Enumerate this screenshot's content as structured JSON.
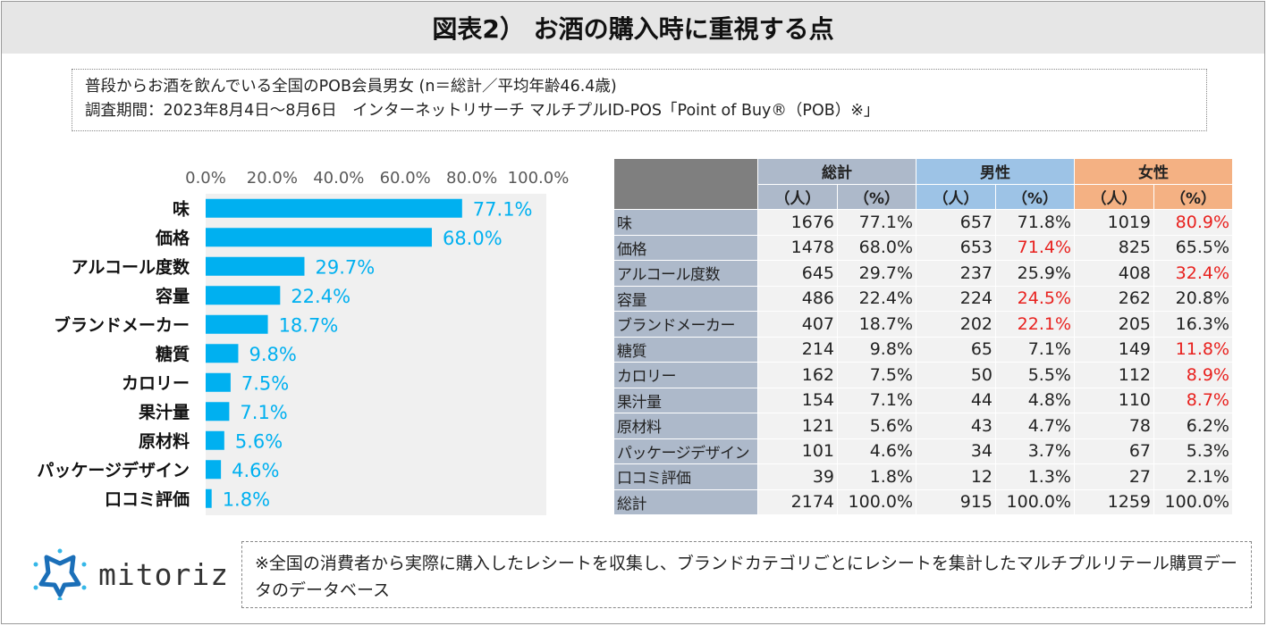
{
  "title": "図表2） お酒の購入時に重視する点",
  "survey": {
    "line1": "普段からお酒を飲んでいる全国のPOB会員男女 (n＝総計／平均年齢46.4歳)",
    "line2": "調査期間：2023年8月4日〜8月6日　インターネットリサーチ マルチプルID-POS「Point of Buy®（POB）※」"
  },
  "colors": {
    "bar": "#00b0f0",
    "highlight": "#e8211e",
    "header_all": "#adb9ca",
    "header_male": "#9dc3e6",
    "header_female": "#f4b183"
  },
  "chart_data": {
    "type": "bar",
    "orientation": "horizontal",
    "categories": [
      "味",
      "価格",
      "アルコール度数",
      "容量",
      "ブランドメーカー",
      "糖質",
      "カロリー",
      "果汁量",
      "原材料",
      "パッケージデザイン",
      "口コミ評価"
    ],
    "values": [
      77.1,
      68.0,
      29.7,
      22.4,
      18.7,
      9.8,
      7.5,
      7.1,
      5.6,
      4.6,
      1.8
    ],
    "value_labels": [
      "77.1%",
      "68.0%",
      "29.7%",
      "22.4%",
      "18.7%",
      "9.8%",
      "7.5%",
      "7.1%",
      "5.6%",
      "4.6%",
      "1.8%"
    ],
    "xticks": [
      0,
      20,
      40,
      60,
      80,
      100
    ],
    "xtick_labels": [
      "0.0%",
      "20.0%",
      "40.0%",
      "60.0%",
      "80.0%",
      "100.0%"
    ],
    "xlim": [
      0,
      100
    ],
    "axis_position": "top",
    "title": "",
    "xlabel": "",
    "ylabel": ""
  },
  "table": {
    "groups": [
      "総計",
      "男性",
      "女性"
    ],
    "subheaders": [
      "（人）",
      "（%）",
      "（人）",
      "（%）",
      "（人）",
      "（%）"
    ],
    "rows": [
      {
        "label": "味",
        "cells": [
          "1676",
          "77.1%",
          "657",
          "71.8%",
          "1019",
          "80.9%"
        ],
        "hl": [
          5
        ]
      },
      {
        "label": "価格",
        "cells": [
          "1478",
          "68.0%",
          "653",
          "71.4%",
          "825",
          "65.5%"
        ],
        "hl": [
          3
        ]
      },
      {
        "label": "アルコール度数",
        "cells": [
          "645",
          "29.7%",
          "237",
          "25.9%",
          "408",
          "32.4%"
        ],
        "hl": [
          5
        ]
      },
      {
        "label": "容量",
        "cells": [
          "486",
          "22.4%",
          "224",
          "24.5%",
          "262",
          "20.8%"
        ],
        "hl": [
          3
        ]
      },
      {
        "label": "ブランドメーカー",
        "cells": [
          "407",
          "18.7%",
          "202",
          "22.1%",
          "205",
          "16.3%"
        ],
        "hl": [
          3
        ]
      },
      {
        "label": "糖質",
        "cells": [
          "214",
          "9.8%",
          "65",
          "7.1%",
          "149",
          "11.8%"
        ],
        "hl": [
          5
        ]
      },
      {
        "label": "カロリー",
        "cells": [
          "162",
          "7.5%",
          "50",
          "5.5%",
          "112",
          "8.9%"
        ],
        "hl": [
          5
        ]
      },
      {
        "label": "果汁量",
        "cells": [
          "154",
          "7.1%",
          "44",
          "4.8%",
          "110",
          "8.7%"
        ],
        "hl": [
          5
        ]
      },
      {
        "label": "原材料",
        "cells": [
          "121",
          "5.6%",
          "43",
          "4.7%",
          "78",
          "6.2%"
        ],
        "hl": []
      },
      {
        "label": "パッケージデザイン",
        "cells": [
          "101",
          "4.6%",
          "34",
          "3.7%",
          "67",
          "5.3%"
        ],
        "hl": []
      },
      {
        "label": "口コミ評価",
        "cells": [
          "39",
          "1.8%",
          "12",
          "1.3%",
          "27",
          "2.1%"
        ],
        "hl": []
      },
      {
        "label": "総計",
        "cells": [
          "2174",
          "100.0%",
          "915",
          "100.0%",
          "1259",
          "100.0%"
        ],
        "hl": []
      }
    ]
  },
  "logo": {
    "text": "mitoriz",
    "icon": "mitoriz-logo-icon",
    "colors": [
      "#1b6fb8",
      "#35b7e8"
    ]
  },
  "note": "※全国の消費者から実際に購入したレシートを収集し、ブランドカテゴリごとにレシートを集計したマルチプルリテール購買データのデータベース"
}
